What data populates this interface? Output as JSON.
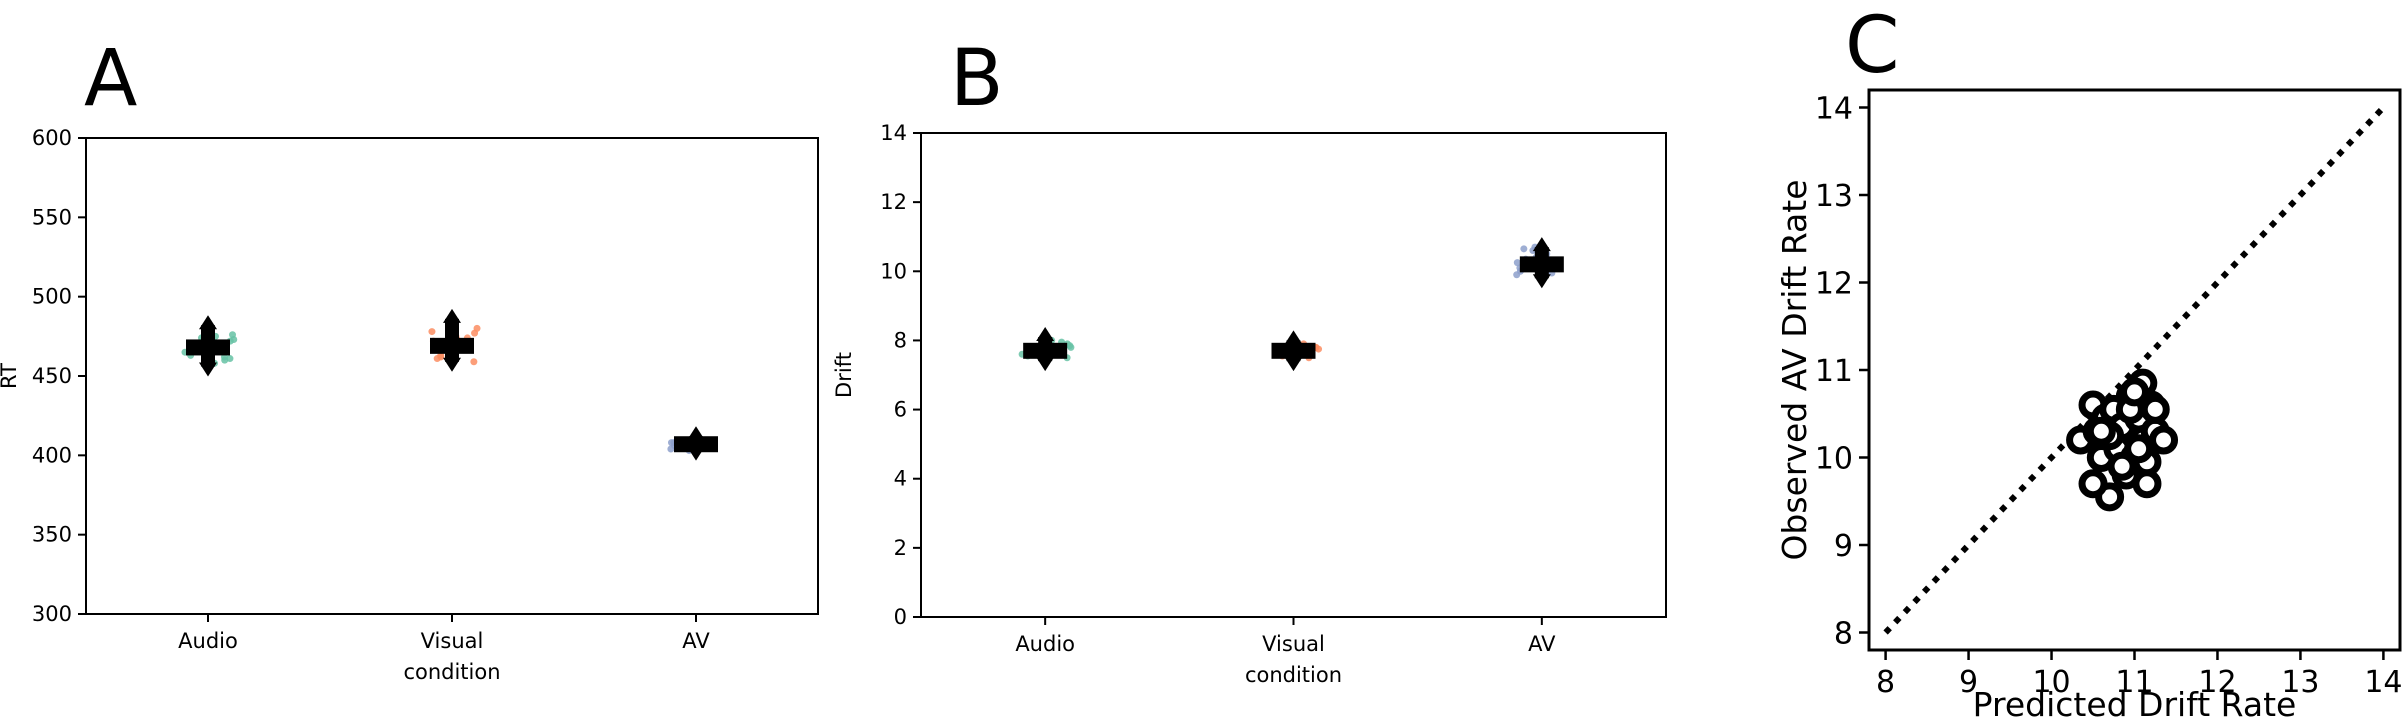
{
  "panels": [
    {
      "letter": "A"
    },
    {
      "letter": "B"
    },
    {
      "letter": "C"
    }
  ],
  "colors": {
    "Audio": "#66c2a5",
    "Visual": "#fc8d62",
    "AV": "#8da0cb",
    "marker": "#000000"
  },
  "chart_data": [
    {
      "type": "scatter",
      "panel": "A",
      "xlabel": "condition",
      "ylabel": "RT",
      "categories": [
        "Audio",
        "Visual",
        "AV"
      ],
      "ylim": [
        300,
        600
      ],
      "yticks": [
        300,
        350,
        400,
        450,
        500,
        550,
        600
      ],
      "grid": false,
      "legend": "none",
      "series": [
        {
          "category": "Audio",
          "mean": 468,
          "ci": [
            456,
            482
          ],
          "points": [
            461,
            465,
            470,
            474,
            478,
            458,
            463,
            467,
            471,
            476,
            460,
            469,
            473,
            462,
            466,
            472,
            457,
            475
          ]
        },
        {
          "category": "Visual",
          "mean": 469,
          "ci": [
            459,
            486
          ],
          "points": [
            462,
            466,
            471,
            475,
            480,
            459,
            464,
            468,
            473,
            477,
            483,
            461,
            470,
            474,
            463,
            467,
            472,
            478
          ]
        },
        {
          "category": "AV",
          "mean": 407,
          "ci": [
            403,
            412
          ],
          "points": [
            404,
            406,
            408,
            410,
            405,
            407,
            409,
            403,
            411,
            406,
            408,
            407
          ]
        }
      ]
    },
    {
      "type": "scatter",
      "panel": "B",
      "xlabel": "condition",
      "ylabel": "Drift",
      "categories": [
        "Audio",
        "Visual",
        "AV"
      ],
      "ylim": [
        0,
        14
      ],
      "yticks": [
        0,
        2,
        4,
        6,
        8,
        10,
        12,
        14
      ],
      "grid": false,
      "legend": "none",
      "series": [
        {
          "category": "Audio",
          "mean": 7.7,
          "ci": [
            7.4,
            8.1
          ],
          "points": [
            7.5,
            7.6,
            7.7,
            7.8,
            7.9,
            8.0,
            7.55,
            7.65,
            7.75,
            7.85,
            7.6,
            7.7,
            7.8,
            7.95,
            7.45,
            7.9
          ]
        },
        {
          "category": "Visual",
          "mean": 7.7,
          "ci": [
            7.4,
            8.0
          ],
          "points": [
            7.55,
            7.6,
            7.65,
            7.7,
            7.75,
            7.8,
            7.85,
            7.6,
            7.7,
            7.8,
            7.65,
            7.75,
            7.9,
            7.5
          ]
        },
        {
          "category": "AV",
          "mean": 10.2,
          "ci": [
            9.8,
            10.7
          ],
          "points": [
            9.9,
            10.0,
            10.1,
            10.2,
            10.3,
            10.4,
            10.6,
            10.7,
            10.05,
            10.15,
            10.25,
            10.35,
            10.5,
            10.65,
            9.95,
            10.1
          ]
        }
      ]
    },
    {
      "type": "scatter",
      "panel": "C",
      "xlabel": "Predicted Drift Rate",
      "ylabel": "Observed AV Drift Rate",
      "xlim": [
        7.8,
        14.2
      ],
      "ylim": [
        7.8,
        14.2
      ],
      "xticks": [
        8,
        9,
        10,
        11,
        12,
        13,
        14
      ],
      "yticks": [
        8,
        9,
        10,
        11,
        12,
        13,
        14
      ],
      "reference_line": {
        "style": "dotted",
        "from": [
          8,
          8
        ],
        "to": [
          14,
          14
        ]
      },
      "grid": false,
      "legend": "none",
      "points": [
        [
          10.35,
          10.2
        ],
        [
          10.5,
          10.6
        ],
        [
          10.55,
          10.3
        ],
        [
          10.6,
          10.0
        ],
        [
          10.65,
          10.45
        ],
        [
          10.7,
          9.55
        ],
        [
          10.75,
          10.55
        ],
        [
          10.8,
          10.1
        ],
        [
          10.85,
          10.35
        ],
        [
          10.9,
          9.8
        ],
        [
          10.95,
          10.7
        ],
        [
          11.0,
          10.0
        ],
        [
          11.05,
          10.45
        ],
        [
          11.1,
          10.85
        ],
        [
          11.1,
          10.2
        ],
        [
          11.15,
          9.95
        ],
        [
          11.2,
          10.6
        ],
        [
          11.25,
          10.3
        ],
        [
          11.35,
          10.2
        ],
        [
          11.15,
          9.7
        ],
        [
          10.95,
          10.55
        ],
        [
          10.7,
          10.25
        ],
        [
          11.0,
          10.75
        ],
        [
          10.5,
          9.7
        ],
        [
          10.85,
          9.9
        ],
        [
          11.25,
          10.55
        ],
        [
          10.6,
          10.3
        ],
        [
          11.05,
          10.1
        ]
      ]
    }
  ]
}
